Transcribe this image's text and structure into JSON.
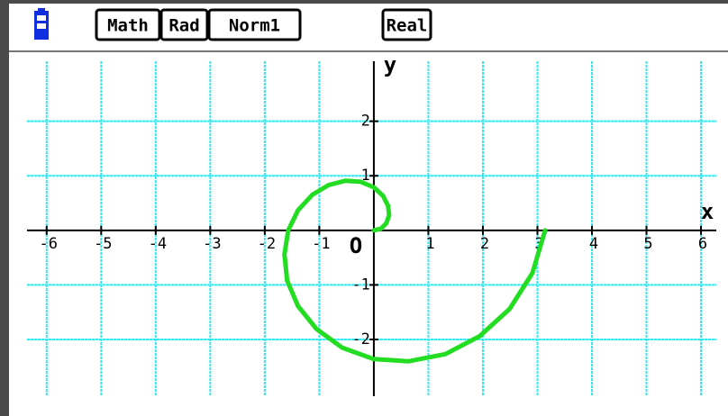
{
  "status_bar": {
    "items": [
      "Math",
      "Rad",
      "Norm1",
      "Real"
    ]
  },
  "chart_data": {
    "type": "line",
    "x_label": "x",
    "y_label": "y",
    "origin_label": "O",
    "color": "#22dd22",
    "x": [
      0,
      0.13,
      0.23,
      0.28,
      0.26,
      0.17,
      0,
      -0.24,
      -0.52,
      -0.83,
      -1.13,
      -1.39,
      -1.57,
      -1.64,
      -1.59,
      -1.39,
      -1.05,
      -0.58,
      0,
      0.64,
      1.31,
      1.94,
      2.49,
      2.91,
      3.14
    ],
    "values": [
      0,
      0.03,
      0.13,
      0.28,
      0.45,
      0.63,
      0.79,
      0.89,
      0.91,
      0.83,
      0.65,
      0.37,
      0,
      -0.44,
      -0.92,
      -1.39,
      -1.81,
      -2.15,
      -2.36,
      -2.4,
      -2.27,
      -1.94,
      -1.44,
      -0.78,
      0
    ],
    "xlim": [
      -6.36,
      6.28
    ],
    "ylim": [
      -3.04,
      3.1
    ],
    "xticks": [
      -6,
      -5,
      -4,
      -3,
      -2,
      -1,
      1,
      2,
      3,
      4,
      5,
      6
    ],
    "yticks": [
      -2,
      -1,
      1,
      2
    ],
    "grid": true,
    "grid_color": "#33e6f0"
  }
}
